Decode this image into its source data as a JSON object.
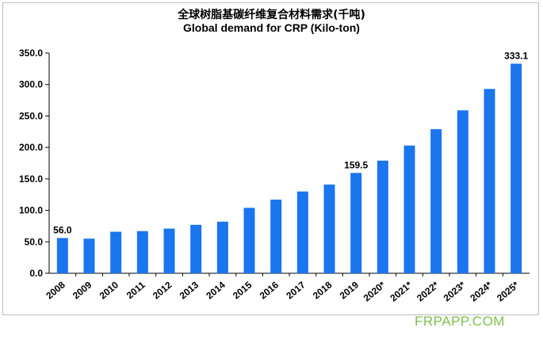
{
  "title_cn": "全球树脂基碳纤维复合材料需求(千吨)",
  "title_en": "Global demand for CRP  (Kilo-ton)",
  "watermark": "FRPAPP.COM",
  "colors": {
    "bar": "#1a75ee",
    "axis": "#000000",
    "grid": "#000000"
  },
  "chart_data": {
    "type": "bar",
    "title": "全球树脂基碳纤维复合材料需求(千吨) / Global demand for CRP  (Kilo-ton)",
    "categories": [
      "2008",
      "2009",
      "2010",
      "2011",
      "2012",
      "2013",
      "2014",
      "2015",
      "2016",
      "2017",
      "2018",
      "2019",
      "2020*",
      "2021*",
      "2022*",
      "2023*",
      "2024*",
      "2025*"
    ],
    "values": [
      56.0,
      55.0,
      66.0,
      67.0,
      71.0,
      77.0,
      82.0,
      104.0,
      117.0,
      130.0,
      141.0,
      159.5,
      179.0,
      203.0,
      229.0,
      259.0,
      293.0,
      333.1
    ],
    "data_labels": [
      {
        "index": 0,
        "text": "56.0"
      },
      {
        "index": 11,
        "text": "159.5"
      },
      {
        "index": 17,
        "text": "333.1"
      }
    ],
    "y_ticks": [
      "0.0",
      "50.0",
      "100.0",
      "150.0",
      "200.0",
      "250.0",
      "300.0",
      "350.0"
    ],
    "ylim": [
      0,
      350
    ],
    "xlabel": "",
    "ylabel": "",
    "grid": false,
    "legend": "none"
  }
}
